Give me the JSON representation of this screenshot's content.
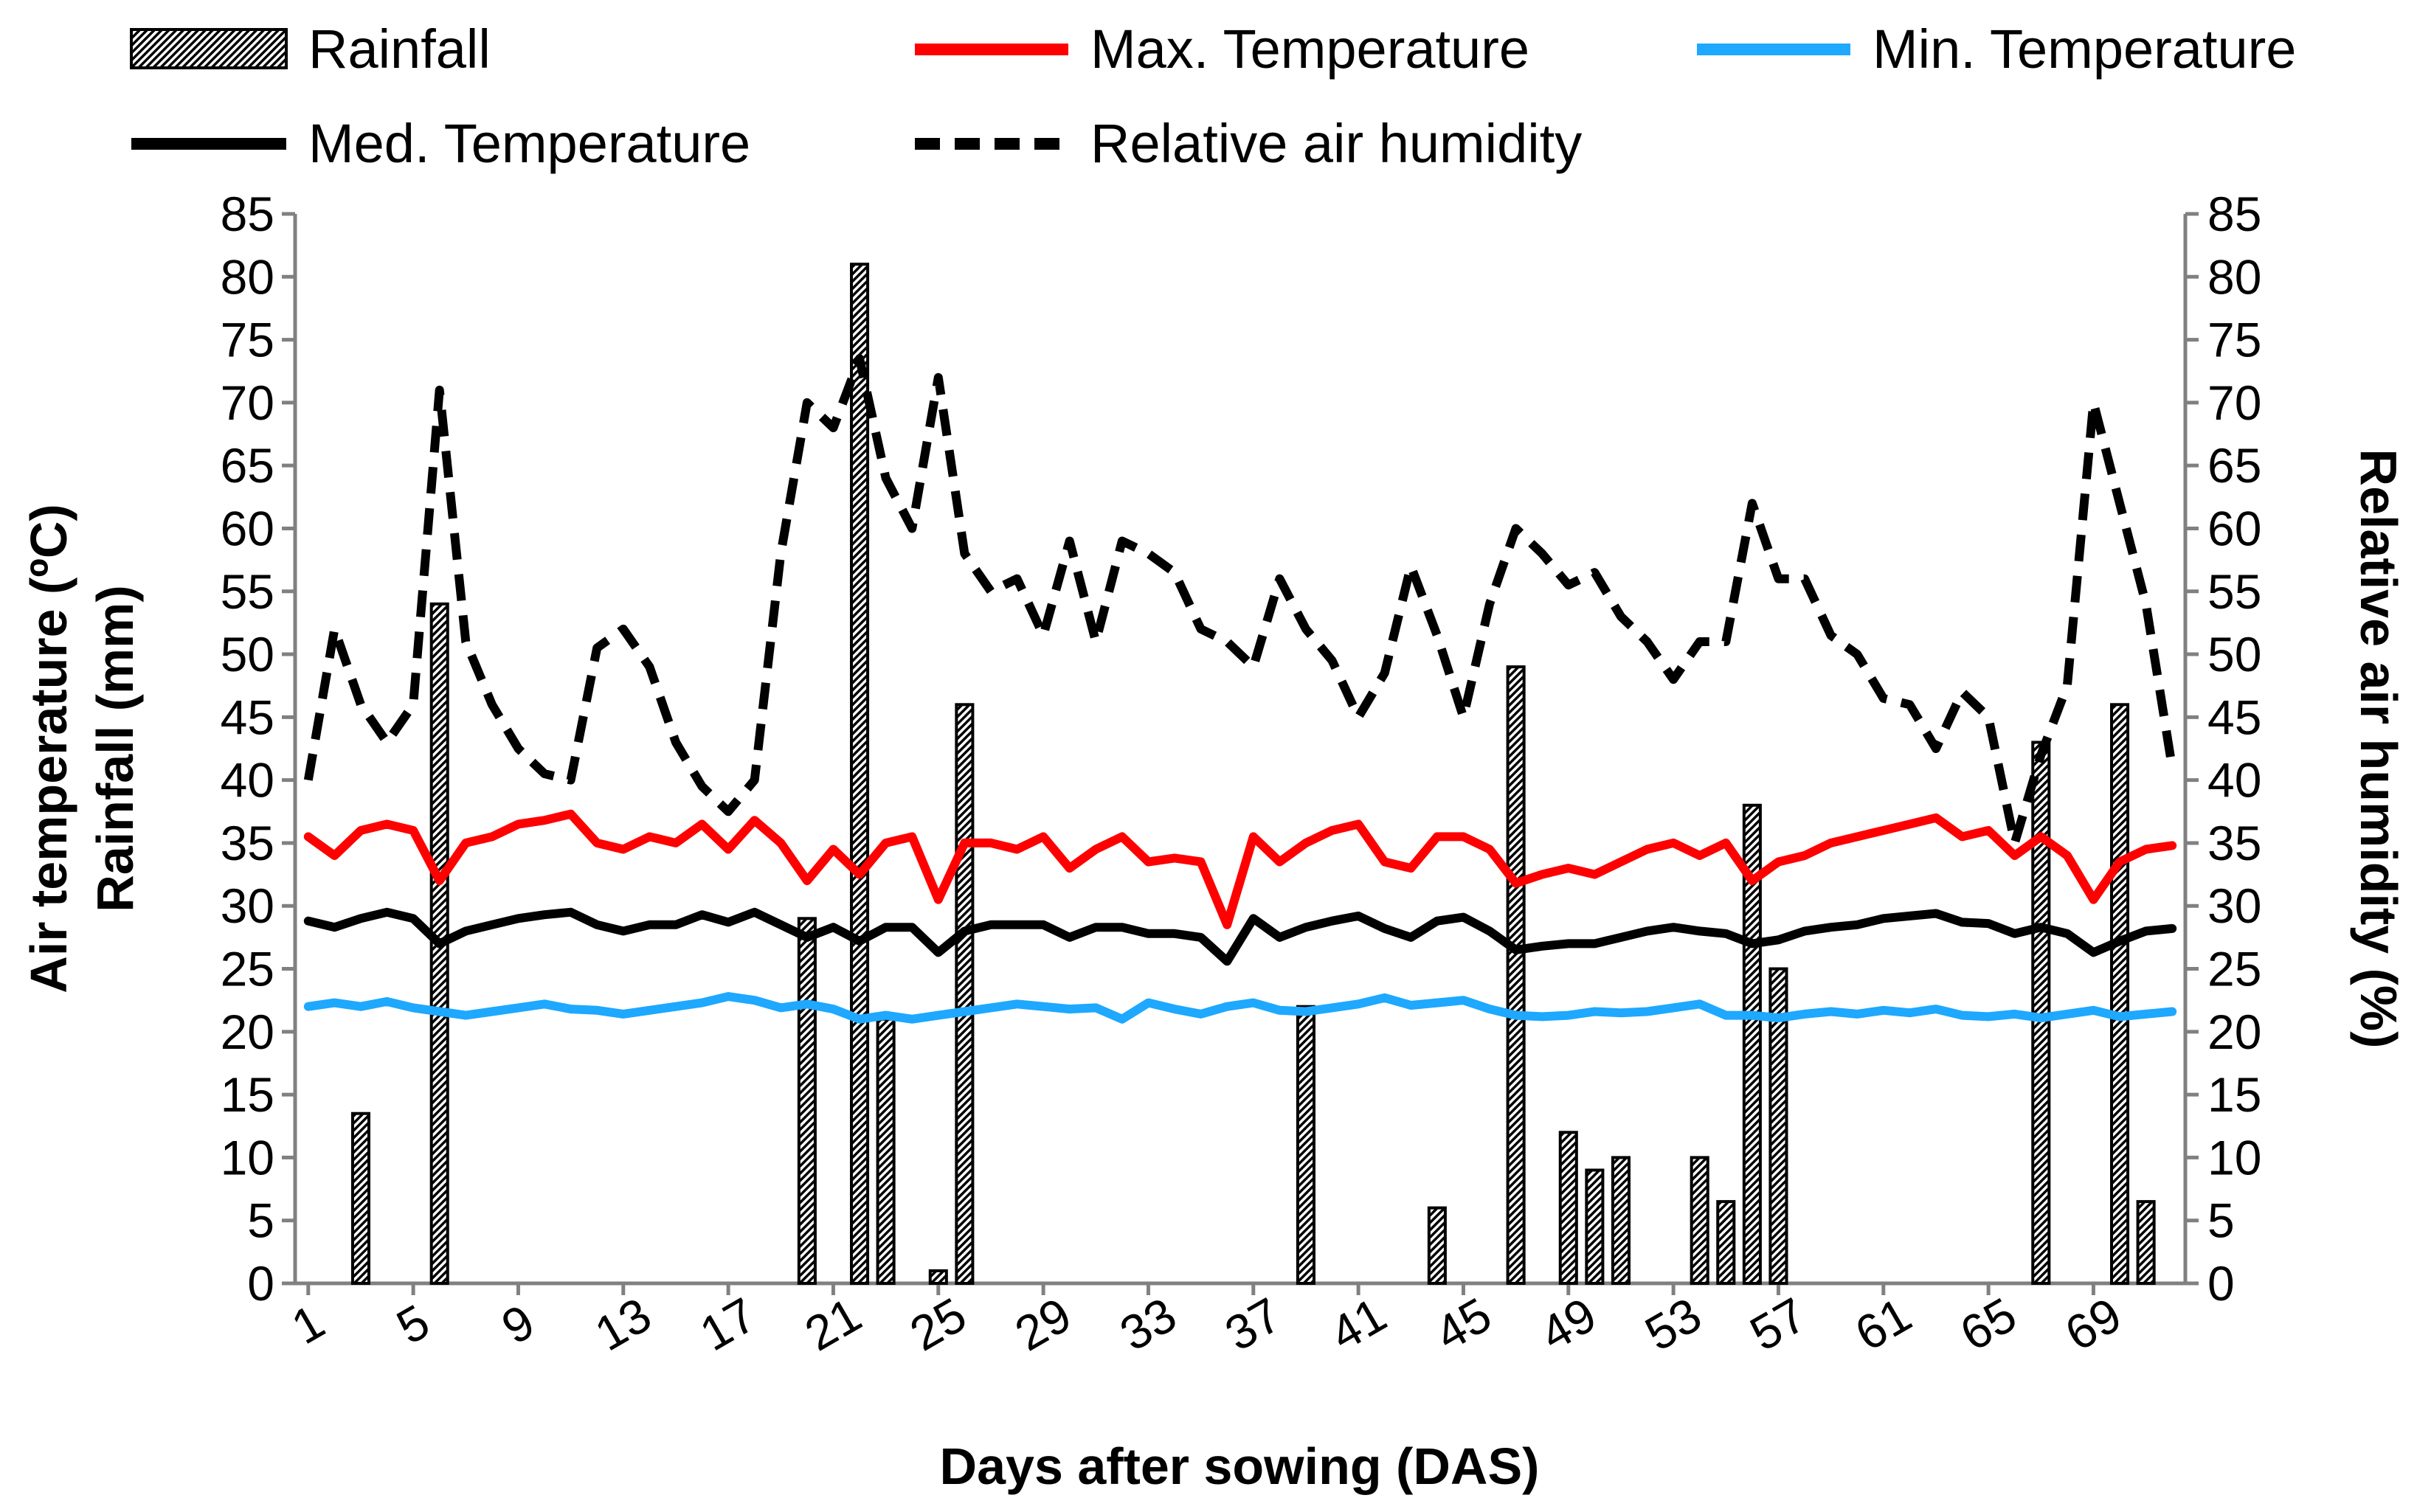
{
  "chart_data": {
    "type": "bar+line",
    "x": [
      1,
      2,
      3,
      4,
      5,
      6,
      7,
      8,
      9,
      10,
      11,
      12,
      13,
      14,
      15,
      16,
      17,
      18,
      19,
      20,
      21,
      22,
      23,
      24,
      25,
      26,
      27,
      28,
      29,
      30,
      31,
      32,
      33,
      34,
      35,
      36,
      37,
      38,
      39,
      40,
      41,
      42,
      43,
      44,
      45,
      46,
      47,
      48,
      49,
      50,
      51,
      52,
      53,
      54,
      55,
      56,
      57,
      58,
      59,
      60,
      61,
      62,
      63,
      64,
      65,
      66,
      67,
      68,
      69,
      70,
      71,
      72
    ],
    "x_tick_labels": [
      "1",
      "5",
      "9",
      "13",
      "17",
      "21",
      "25",
      "29",
      "33",
      "37",
      "41",
      "45",
      "49",
      "53",
      "57",
      "61",
      "65",
      "69"
    ],
    "xlabel": "Days after sowing (DAS)",
    "ylabel_left_line1": "Air temperature (ºC)",
    "ylabel_left_line2": "Rainfall (mm)",
    "ylabel_right": "Relative air humidity (%)",
    "ylim_left": [
      0,
      85
    ],
    "ylim_right": [
      0,
      85
    ],
    "y_tick_step": 5,
    "legend_position": "top",
    "series": [
      {
        "name": "Rainfall",
        "kind": "bar",
        "axis": "left",
        "color": "#000000",
        "values": [
          0,
          0,
          13.5,
          0,
          0,
          54,
          0,
          0,
          0,
          0,
          0,
          0,
          0,
          0,
          0,
          0,
          0,
          0,
          0,
          29,
          0,
          81,
          21,
          0,
          1,
          46,
          0,
          0,
          0,
          0,
          0,
          0,
          0,
          0,
          0,
          0,
          0,
          0,
          22,
          0,
          0,
          0,
          0,
          6,
          0,
          0,
          49,
          0,
          12,
          9,
          10,
          0,
          0,
          10,
          6.5,
          38,
          25,
          0,
          0,
          0,
          0,
          0,
          0,
          0,
          0,
          0,
          43,
          0,
          0,
          46,
          6.5,
          0
        ]
      },
      {
        "name": "Max. Temperature",
        "kind": "line",
        "axis": "left",
        "color": "#ff0000",
        "dash": "solid",
        "values": [
          35.5,
          34,
          36,
          36.5,
          36,
          32,
          35,
          35.5,
          36.5,
          36.8,
          37.3,
          35,
          34.5,
          35.5,
          35,
          36.5,
          34.5,
          36.8,
          35,
          32,
          34.5,
          32.5,
          35,
          35.5,
          30.5,
          35,
          35,
          34.5,
          35.5,
          33,
          34.5,
          35.5,
          33.5,
          33.8,
          33.5,
          28.5,
          35.5,
          33.5,
          35,
          36,
          36.5,
          33.5,
          33,
          35.5,
          35.5,
          34.5,
          31.8,
          32.5,
          33,
          32.5,
          33.5,
          34.5,
          35,
          34,
          35,
          32,
          33.5,
          34,
          35,
          35.5,
          36,
          36.5,
          37,
          35.5,
          36,
          34,
          35.5,
          34,
          30.5,
          33.5,
          34.5,
          34.8
        ]
      },
      {
        "name": "Min. Temperature",
        "kind": "line",
        "axis": "left",
        "color": "#1ea8ff",
        "dash": "solid",
        "values": [
          22,
          22.3,
          22,
          22.4,
          21.9,
          21.6,
          21.3,
          21.6,
          21.9,
          22.2,
          21.8,
          21.7,
          21.4,
          21.7,
          22,
          22.3,
          22.8,
          22.5,
          21.9,
          22.2,
          21.8,
          21,
          21.3,
          21,
          21.3,
          21.6,
          21.9,
          22.2,
          22,
          21.8,
          21.9,
          21,
          22.3,
          21.8,
          21.4,
          22,
          22.3,
          21.7,
          21.6,
          21.9,
          22.2,
          22.7,
          22.1,
          22.3,
          22.5,
          21.8,
          21.3,
          21.2,
          21.3,
          21.6,
          21.5,
          21.6,
          21.9,
          22.2,
          21.3,
          21.3,
          21.1,
          21.4,
          21.6,
          21.4,
          21.7,
          21.5,
          21.8,
          21.3,
          21.2,
          21.4,
          21.1,
          21.4,
          21.7,
          21.2,
          21.4,
          21.6
        ]
      },
      {
        "name": "Med. Temperature",
        "kind": "line",
        "axis": "left",
        "color": "#000000",
        "dash": "solid",
        "values": [
          28.8,
          28.3,
          29,
          29.5,
          29,
          27,
          28,
          28.5,
          29,
          29.3,
          29.5,
          28.5,
          28,
          28.5,
          28.5,
          29.3,
          28.7,
          29.5,
          28.5,
          27.5,
          28.3,
          27.2,
          28.3,
          28.3,
          26.3,
          28,
          28.5,
          28.5,
          28.5,
          27.5,
          28.3,
          28.3,
          27.8,
          27.8,
          27.5,
          25.6,
          29,
          27.5,
          28.3,
          28.8,
          29.2,
          28.2,
          27.5,
          28.8,
          29.1,
          28,
          26.5,
          26.8,
          27,
          27,
          27.5,
          28,
          28.3,
          28,
          27.8,
          27,
          27.3,
          28,
          28.3,
          28.5,
          29,
          29.2,
          29.4,
          28.7,
          28.6,
          27.8,
          28.3,
          27.8,
          26.3,
          27.2,
          28,
          28.2
        ]
      },
      {
        "name": "Relative air humidity",
        "kind": "line",
        "axis": "right",
        "color": "#000000",
        "dash": "dashed",
        "values": [
          40,
          52,
          46,
          43,
          46,
          71,
          51,
          46,
          42.5,
          40.5,
          40,
          50.5,
          52,
          49,
          43,
          39.5,
          37.5,
          40,
          58,
          70,
          68,
          73.5,
          64,
          60,
          72,
          58,
          55,
          56,
          51.5,
          59,
          51,
          59,
          58,
          56.5,
          52,
          51,
          49,
          56,
          52,
          49.5,
          45,
          48.5,
          57,
          51.5,
          45,
          54,
          60,
          58,
          55.5,
          56.5,
          53,
          51,
          48,
          51,
          51,
          62,
          56,
          56,
          51.5,
          50,
          46.5,
          46,
          42.5,
          47,
          45,
          35,
          42,
          47.5,
          70,
          62,
          54,
          41
        ]
      }
    ]
  }
}
